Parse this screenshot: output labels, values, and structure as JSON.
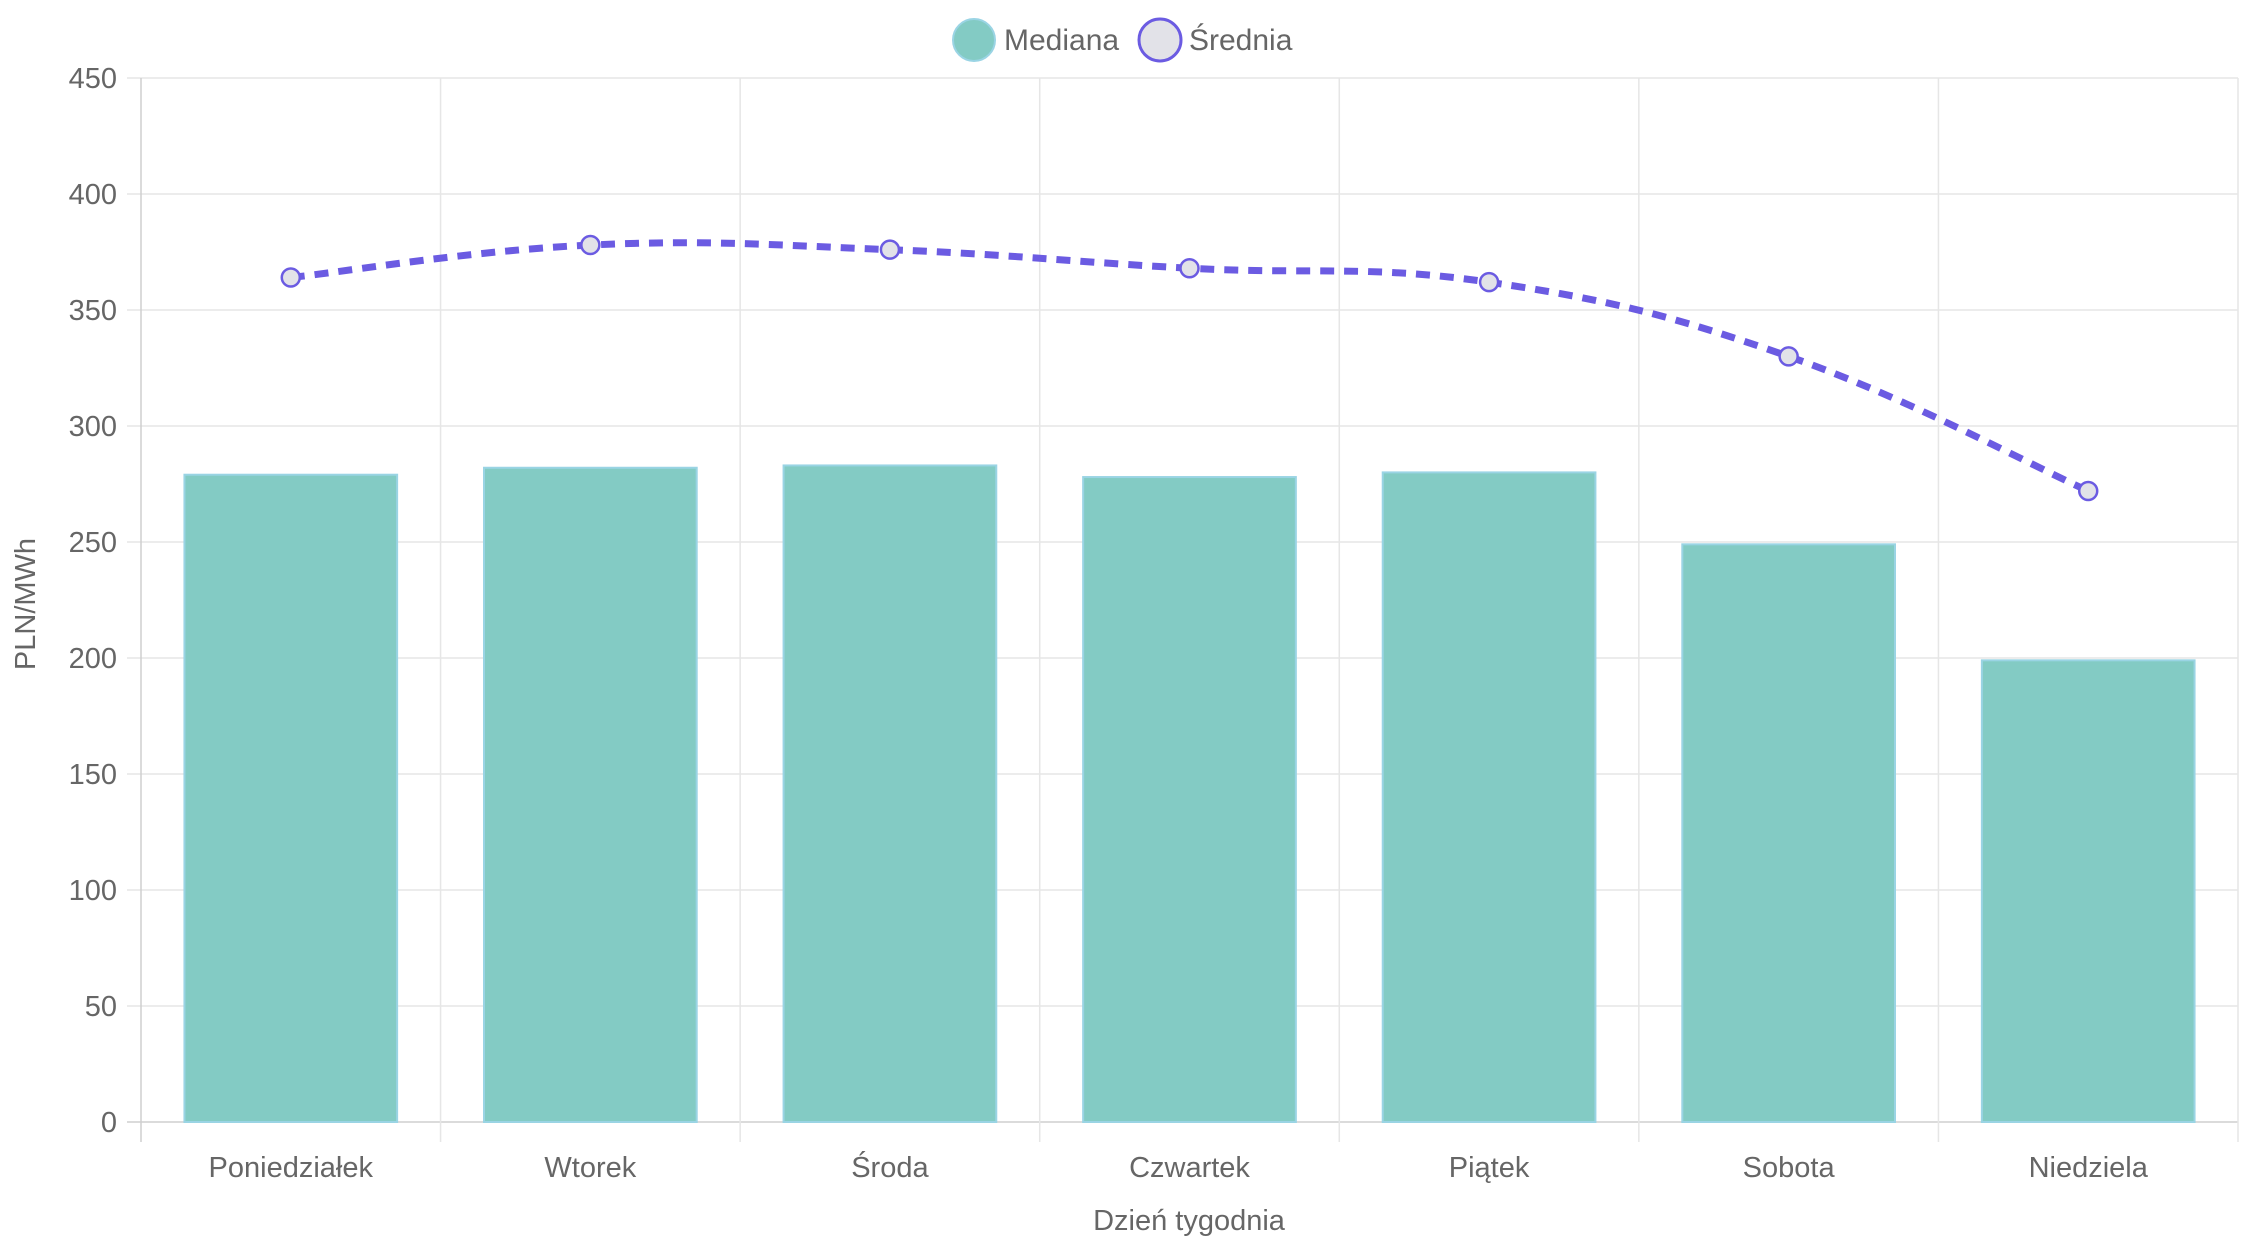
{
  "chart_data": {
    "type": "bar",
    "title": "",
    "xlabel": "Dzień tygodnia",
    "ylabel": "PLN/MWh",
    "ylim": [
      0,
      450
    ],
    "y_ticks": [
      0,
      50,
      100,
      150,
      200,
      250,
      300,
      350,
      400,
      450
    ],
    "grid": true,
    "legend_position": "top-center",
    "categories": [
      "Poniedziałek",
      "Wtorek",
      "Środa",
      "Czwartek",
      "Piątek",
      "Sobota",
      "Niedziela"
    ],
    "series": [
      {
        "name": "Mediana",
        "type": "bar",
        "color": "#83cbc4",
        "border_color": "#9ad4e4",
        "values": [
          279,
          282,
          283,
          278,
          280,
          249,
          199
        ]
      },
      {
        "name": "Średnia",
        "type": "line",
        "style": "dashed",
        "smooth": true,
        "color": "#6b5be2",
        "point_fill": "#e2e2e8",
        "values": [
          364,
          378,
          376,
          368,
          362,
          330,
          272
        ]
      }
    ]
  }
}
